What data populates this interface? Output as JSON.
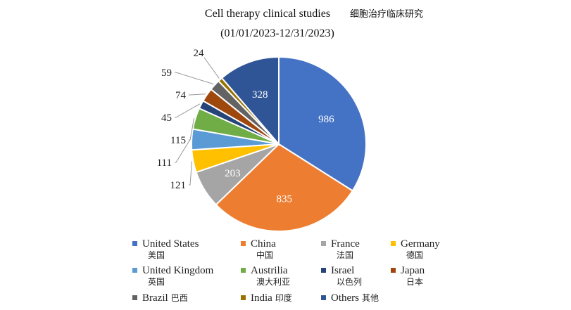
{
  "chart_data": {
    "type": "pie",
    "title": "Cell therapy clinical studies",
    "title_cn": "细胞治疗临床研究",
    "subtitle": "(01/01/2023-12/31/2023)",
    "legend_position": "bottom",
    "slices": [
      {
        "name": "United States",
        "name_cn": "美国",
        "value": 986,
        "color": "#4472C4",
        "label_inside": true
      },
      {
        "name": "China",
        "name_cn": "中国",
        "value": 835,
        "color": "#ED7D31",
        "label_inside": true
      },
      {
        "name": "France",
        "name_cn": "法国",
        "value": 203,
        "color": "#A5A5A5",
        "label_inside": true
      },
      {
        "name": "Germany",
        "name_cn": "德国",
        "value": 121,
        "color": "#FFC000",
        "label_inside": false
      },
      {
        "name": "United Kingdom",
        "name_cn": "英国",
        "value": 111,
        "color": "#5B9BD5",
        "label_inside": false
      },
      {
        "name": "Austrilia",
        "name_cn": "澳大利亚",
        "value": 115,
        "color": "#70AD47",
        "label_inside": false
      },
      {
        "name": "Israel",
        "name_cn": "以色列",
        "value": 45,
        "color": "#264478",
        "label_inside": false
      },
      {
        "name": "Japan",
        "name_cn": "日本",
        "value": 74,
        "color": "#9E480E",
        "label_inside": false
      },
      {
        "name": "Brazil",
        "name_cn": "巴西",
        "value": 59,
        "color": "#636363",
        "label_inside": false
      },
      {
        "name": "India",
        "name_cn": "印度",
        "value": 24,
        "color": "#997300",
        "label_inside": false
      },
      {
        "name": "Others",
        "name_cn": "其他",
        "value": 328,
        "color": "#2F5597",
        "label_inside": true
      }
    ]
  }
}
